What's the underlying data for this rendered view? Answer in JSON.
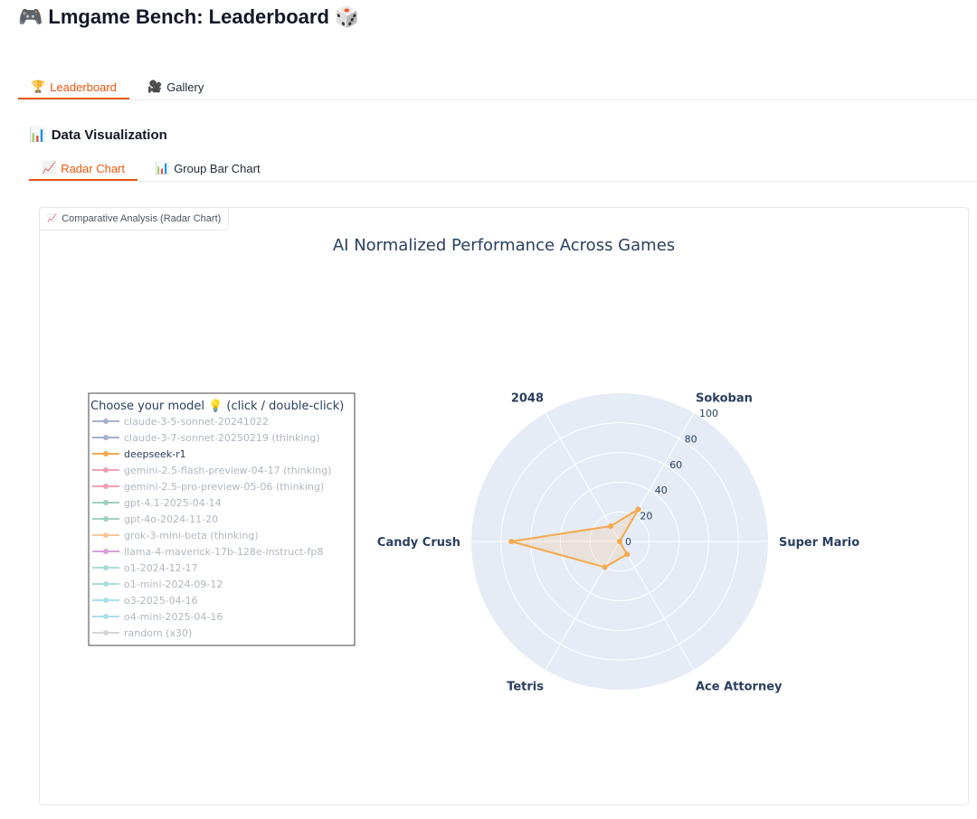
{
  "header": {
    "title": "Lmgame Bench: Leaderboard",
    "icon_left": "🎮",
    "icon_right": "🎲"
  },
  "main_tabs": [
    {
      "icon": "🏆",
      "label": "Leaderboard",
      "active": true
    },
    {
      "icon": "🎥",
      "label": "Gallery",
      "active": false
    }
  ],
  "section": {
    "icon": "📊",
    "title": "Data Visualization"
  },
  "sub_tabs": [
    {
      "icon": "📈",
      "label": "Radar Chart",
      "active": true
    },
    {
      "icon": "📊",
      "label": "Group Bar Chart",
      "active": false
    }
  ],
  "panel": {
    "icon": "📈",
    "label": "Comparative Analysis (Radar Chart)"
  },
  "chart_data": {
    "type": "radar",
    "title": "AI Normalized Performance Across Games",
    "axes": [
      "2048",
      "Sokoban",
      "Super Mario",
      "Ace Attorney",
      "Tetris",
      "Candy Crush"
    ],
    "radial_ticks": [
      0,
      20,
      40,
      60,
      80,
      100
    ],
    "range": [
      0,
      100
    ],
    "legend": {
      "title": "Choose your model 💡 (click / double-click)",
      "items": [
        {
          "name": "claude-3-5-sonnet-20241022",
          "color": "#a7b1c9",
          "active": false
        },
        {
          "name": "claude-3-7-sonnet-20250219 (thinking)",
          "color": "#a7b1c9",
          "active": false
        },
        {
          "name": "deepseek-r1",
          "color": "#f5a94b",
          "active": true
        },
        {
          "name": "gemini-2.5-flash-preview-04-17 (thinking)",
          "color": "#f2a0b4",
          "active": false
        },
        {
          "name": "gemini-2.5-pro-preview-05-06 (thinking)",
          "color": "#f2a0b4",
          "active": false
        },
        {
          "name": "gpt-4.1-2025-04-14",
          "color": "#9fd1c1",
          "active": false
        },
        {
          "name": "gpt-4o-2024-11-20",
          "color": "#9fd1c1",
          "active": false
        },
        {
          "name": "grok-3-mini-beta (thinking)",
          "color": "#f7c99a",
          "active": false
        },
        {
          "name": "llama-4-maverick-17b-128e-instruct-fp8",
          "color": "#d7a0db",
          "active": false
        },
        {
          "name": "o1-2024-12-17",
          "color": "#a8dfd8",
          "active": false
        },
        {
          "name": "o1-mini-2024-09-12",
          "color": "#a8dfd8",
          "active": false
        },
        {
          "name": "o3-2025-04-16",
          "color": "#a9e0ec",
          "active": false
        },
        {
          "name": "o4-mini-2025-04-16",
          "color": "#a9e0ec",
          "active": false
        },
        {
          "name": "random (x30)",
          "color": "#d6d6d6",
          "active": false
        }
      ]
    },
    "series": [
      {
        "name": "deepseek-r1",
        "color": "#f5a94b",
        "values": [
          12,
          25,
          0,
          10,
          20,
          73
        ]
      }
    ]
  }
}
